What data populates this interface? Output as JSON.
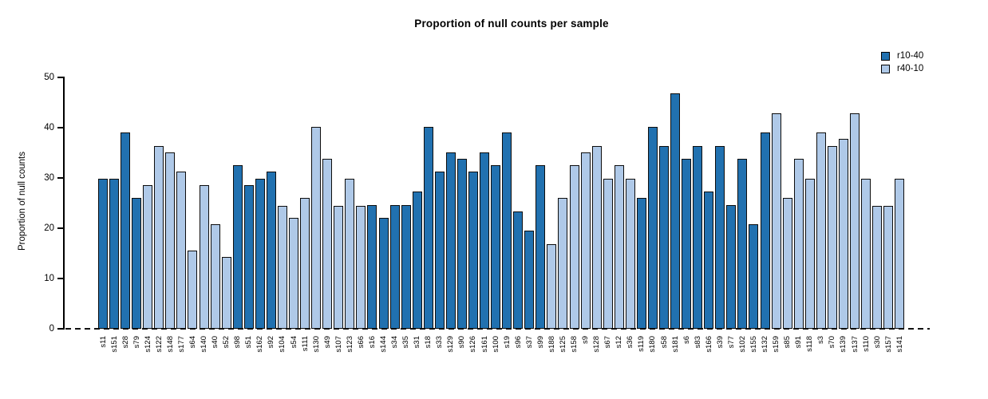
{
  "title": "Proportion of null counts per sample",
  "chart_data": {
    "type": "bar",
    "title": "Proportion of null counts per sample",
    "xlabel": "",
    "ylabel": "Proportion of null counts",
    "ylim": [
      0,
      50
    ],
    "yticks": [
      0,
      10,
      20,
      30,
      40,
      50
    ],
    "grid": false,
    "legend_position": "top-right",
    "baseline_style": "dashed",
    "colors": {
      "r10-40": "#2171B0",
      "r40-10": "#AFC9E8",
      "bar_border": "#0d0d0d"
    },
    "legend": [
      {
        "label": "r10-40",
        "color": "#2171B0"
      },
      {
        "label": "r40-10",
        "color": "#AFC9E8"
      }
    ],
    "samples": [
      {
        "id": "s11",
        "value": 29.8,
        "group": "r10-40"
      },
      {
        "id": "s151",
        "value": 29.8,
        "group": "r10-40"
      },
      {
        "id": "s28",
        "value": 39.0,
        "group": "r10-40"
      },
      {
        "id": "s79",
        "value": 26.0,
        "group": "r10-40"
      },
      {
        "id": "s124",
        "value": 28.6,
        "group": "r40-10"
      },
      {
        "id": "s122",
        "value": 36.4,
        "group": "r40-10"
      },
      {
        "id": "s148",
        "value": 35.0,
        "group": "r40-10"
      },
      {
        "id": "s177",
        "value": 31.2,
        "group": "r40-10"
      },
      {
        "id": "s64",
        "value": 15.6,
        "group": "r40-10"
      },
      {
        "id": "s140",
        "value": 28.6,
        "group": "r40-10"
      },
      {
        "id": "s40",
        "value": 20.8,
        "group": "r40-10"
      },
      {
        "id": "s52",
        "value": 14.3,
        "group": "r40-10"
      },
      {
        "id": "s98",
        "value": 32.5,
        "group": "r10-40"
      },
      {
        "id": "s51",
        "value": 28.6,
        "group": "r10-40"
      },
      {
        "id": "s162",
        "value": 29.9,
        "group": "r10-40"
      },
      {
        "id": "s92",
        "value": 31.2,
        "group": "r10-40"
      },
      {
        "id": "s104",
        "value": 24.5,
        "group": "r40-10"
      },
      {
        "id": "s54",
        "value": 22.0,
        "group": "r40-10"
      },
      {
        "id": "s111",
        "value": 26.0,
        "group": "r40-10"
      },
      {
        "id": "s130",
        "value": 40.2,
        "group": "r40-10"
      },
      {
        "id": "s49",
        "value": 33.8,
        "group": "r40-10"
      },
      {
        "id": "s107",
        "value": 24.5,
        "group": "r40-10"
      },
      {
        "id": "s123",
        "value": 29.8,
        "group": "r40-10"
      },
      {
        "id": "s66",
        "value": 24.5,
        "group": "r40-10"
      },
      {
        "id": "s16",
        "value": 24.6,
        "group": "r10-40"
      },
      {
        "id": "s144",
        "value": 22.1,
        "group": "r10-40"
      },
      {
        "id": "s34",
        "value": 24.6,
        "group": "r10-40"
      },
      {
        "id": "s35",
        "value": 24.6,
        "group": "r10-40"
      },
      {
        "id": "s31",
        "value": 27.3,
        "group": "r10-40"
      },
      {
        "id": "s18",
        "value": 40.2,
        "group": "r10-40"
      },
      {
        "id": "s33",
        "value": 31.2,
        "group": "r10-40"
      },
      {
        "id": "s129",
        "value": 35.0,
        "group": "r10-40"
      },
      {
        "id": "s90",
        "value": 33.8,
        "group": "r10-40"
      },
      {
        "id": "s126",
        "value": 31.2,
        "group": "r10-40"
      },
      {
        "id": "s161",
        "value": 35.0,
        "group": "r10-40"
      },
      {
        "id": "s100",
        "value": 32.5,
        "group": "r10-40"
      },
      {
        "id": "s19",
        "value": 39.0,
        "group": "r10-40"
      },
      {
        "id": "s96",
        "value": 23.3,
        "group": "r10-40"
      },
      {
        "id": "s37",
        "value": 19.5,
        "group": "r10-40"
      },
      {
        "id": "s99",
        "value": 32.5,
        "group": "r10-40"
      },
      {
        "id": "s188",
        "value": 16.9,
        "group": "r40-10"
      },
      {
        "id": "s125",
        "value": 26.0,
        "group": "r40-10"
      },
      {
        "id": "s158",
        "value": 32.5,
        "group": "r40-10"
      },
      {
        "id": "s9",
        "value": 35.0,
        "group": "r40-10"
      },
      {
        "id": "s128",
        "value": 36.4,
        "group": "r40-10"
      },
      {
        "id": "s67",
        "value": 29.9,
        "group": "r40-10"
      },
      {
        "id": "s12",
        "value": 32.5,
        "group": "r40-10"
      },
      {
        "id": "s36",
        "value": 29.8,
        "group": "r40-10"
      },
      {
        "id": "s119",
        "value": 26.0,
        "group": "r10-40"
      },
      {
        "id": "s180",
        "value": 40.2,
        "group": "r10-40"
      },
      {
        "id": "s58",
        "value": 36.4,
        "group": "r10-40"
      },
      {
        "id": "s181",
        "value": 46.8,
        "group": "r10-40"
      },
      {
        "id": "s6",
        "value": 33.8,
        "group": "r10-40"
      },
      {
        "id": "s83",
        "value": 36.4,
        "group": "r10-40"
      },
      {
        "id": "s166",
        "value": 27.3,
        "group": "r10-40"
      },
      {
        "id": "s39",
        "value": 36.4,
        "group": "r10-40"
      },
      {
        "id": "s77",
        "value": 24.6,
        "group": "r10-40"
      },
      {
        "id": "s102",
        "value": 33.8,
        "group": "r10-40"
      },
      {
        "id": "s155",
        "value": 20.8,
        "group": "r10-40"
      },
      {
        "id": "s132",
        "value": 39.0,
        "group": "r10-40"
      },
      {
        "id": "s159",
        "value": 42.8,
        "group": "r40-10"
      },
      {
        "id": "s85",
        "value": 26.0,
        "group": "r40-10"
      },
      {
        "id": "s91",
        "value": 33.8,
        "group": "r40-10"
      },
      {
        "id": "s118",
        "value": 29.9,
        "group": "r40-10"
      },
      {
        "id": "s3",
        "value": 39.0,
        "group": "r40-10"
      },
      {
        "id": "s70",
        "value": 36.4,
        "group": "r40-10"
      },
      {
        "id": "s139",
        "value": 37.7,
        "group": "r40-10"
      },
      {
        "id": "s137",
        "value": 42.8,
        "group": "r40-10"
      },
      {
        "id": "s110",
        "value": 29.9,
        "group": "r40-10"
      },
      {
        "id": "s30",
        "value": 24.5,
        "group": "r40-10"
      },
      {
        "id": "s157",
        "value": 24.5,
        "group": "r40-10"
      },
      {
        "id": "s141",
        "value": 29.8,
        "group": "r40-10"
      }
    ]
  }
}
